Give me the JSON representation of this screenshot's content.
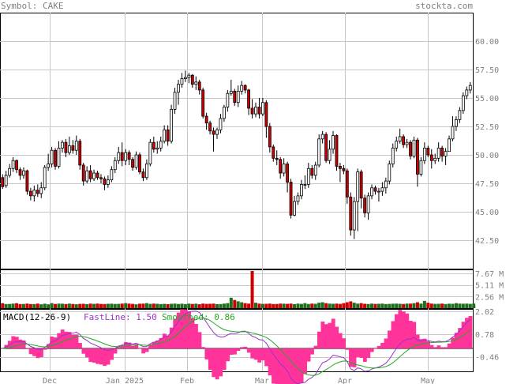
{
  "header": {
    "symbol_label": "Symbol: CAKE",
    "site": "stockta.com"
  },
  "colors": {
    "up_fill": "#ffffff",
    "down_fill": "#cc0000",
    "candle_outline": "#000000",
    "grid": "#c8c8c8",
    "vol_up": "#1e6e1e",
    "vol_down": "#cc0000",
    "macd_line": "#9933cc",
    "signal_line": "#22aa22",
    "histogram": "#ff3399",
    "tick_text": "#808080"
  },
  "chart_data": [
    {
      "name": "price",
      "type": "candlestick",
      "ylim": [
        40.0,
        62.5
      ],
      "yticks": [
        "60.00",
        "57.50",
        "55.00",
        "52.50",
        "50.00",
        "47.50",
        "45.00",
        "42.50"
      ],
      "xticks": [
        "Dec",
        "Jan 2025",
        "Feb",
        "Mar",
        "Apr",
        "May"
      ],
      "grid": true,
      "candles": [
        [
          48.0,
          47.2,
          48.3,
          47.0
        ],
        [
          47.3,
          48.2,
          48.6,
          47.1
        ],
        [
          48.2,
          48.8,
          49.2,
          48.0
        ],
        [
          48.8,
          49.5,
          49.8,
          48.5
        ],
        [
          49.5,
          48.7,
          49.6,
          48.4
        ],
        [
          48.7,
          48.2,
          48.9,
          47.8
        ],
        [
          48.2,
          48.6,
          48.9,
          47.9
        ],
        [
          48.6,
          46.8,
          48.7,
          46.5
        ],
        [
          46.8,
          46.4,
          47.1,
          46.0
        ],
        [
          46.4,
          46.9,
          47.3,
          45.9
        ],
        [
          46.9,
          46.6,
          47.4,
          46.3
        ],
        [
          46.6,
          47.1,
          47.6,
          46.2
        ],
        [
          47.1,
          48.9,
          49.1,
          46.9
        ],
        [
          48.9,
          49.2,
          50.1,
          48.6
        ],
        [
          49.2,
          50.4,
          50.7,
          48.9
        ],
        [
          50.4,
          49.0,
          50.6,
          48.7
        ],
        [
          49.0,
          50.6,
          51.2,
          48.8
        ],
        [
          50.6,
          51.1,
          51.3,
          50.2
        ],
        [
          51.1,
          50.2,
          51.4,
          49.8
        ],
        [
          50.2,
          50.8,
          51.6,
          50.0
        ],
        [
          50.8,
          50.4,
          51.3,
          50.1
        ],
        [
          50.4,
          51.2,
          51.7,
          50.0
        ],
        [
          51.2,
          49.1,
          51.4,
          48.7
        ],
        [
          49.1,
          47.7,
          49.3,
          47.3
        ],
        [
          47.7,
          48.6,
          49.0,
          47.5
        ],
        [
          48.6,
          47.9,
          49.1,
          47.6
        ],
        [
          47.9,
          48.4,
          48.7,
          47.7
        ],
        [
          48.4,
          48.0,
          48.6,
          47.8
        ],
        [
          48.0,
          47.9,
          48.3,
          47.5
        ],
        [
          47.9,
          47.4,
          48.1,
          46.9
        ],
        [
          47.4,
          47.8,
          48.2,
          47.1
        ],
        [
          47.8,
          48.7,
          49.0,
          47.6
        ],
        [
          48.7,
          49.5,
          49.8,
          48.4
        ],
        [
          49.5,
          50.2,
          50.7,
          49.2
        ],
        [
          50.2,
          49.5,
          51.1,
          49.0
        ],
        [
          49.5,
          50.2,
          50.5,
          49.1
        ],
        [
          50.2,
          49.6,
          50.4,
          49.1
        ],
        [
          49.6,
          48.9,
          49.8,
          48.6
        ],
        [
          48.9,
          50.0,
          50.3,
          48.7
        ],
        [
          50.0,
          48.5,
          50.2,
          48.3
        ],
        [
          48.5,
          48.0,
          48.8,
          47.7
        ],
        [
          48.0,
          49.2,
          49.6,
          47.8
        ],
        [
          49.2,
          51.1,
          51.4,
          49.0
        ],
        [
          51.1,
          50.5,
          51.6,
          50.2
        ],
        [
          50.5,
          50.6,
          51.2,
          50.1
        ],
        [
          50.6,
          51.2,
          51.6,
          50.3
        ],
        [
          51.2,
          52.2,
          52.6,
          51.0
        ],
        [
          52.2,
          51.2,
          52.6,
          50.8
        ],
        [
          51.2,
          54.0,
          54.4,
          51.0
        ],
        [
          54.0,
          55.5,
          55.9,
          53.6
        ],
        [
          55.5,
          56.2,
          56.6,
          54.4
        ],
        [
          56.2,
          56.7,
          57.2,
          55.9
        ],
        [
          56.7,
          56.8,
          57.4,
          56.4
        ],
        [
          56.8,
          57.0,
          57.2,
          56.3
        ],
        [
          57.0,
          56.2,
          57.1,
          55.9
        ],
        [
          56.2,
          56.4,
          56.9,
          55.7
        ],
        [
          56.4,
          55.7,
          56.6,
          55.3
        ],
        [
          55.7,
          53.4,
          55.9,
          53.2
        ],
        [
          53.4,
          52.8,
          53.7,
          52.2
        ],
        [
          52.8,
          52.1,
          53.0,
          51.8
        ],
        [
          52.1,
          51.8,
          52.4,
          50.3
        ],
        [
          51.8,
          52.2,
          52.4,
          51.4
        ],
        [
          52.2,
          53.2,
          53.6,
          51.9
        ],
        [
          53.2,
          54.2,
          54.4,
          52.9
        ],
        [
          54.2,
          55.4,
          55.7,
          53.8
        ],
        [
          55.4,
          55.6,
          56.6,
          55.2
        ],
        [
          55.6,
          54.6,
          55.8,
          54.3
        ],
        [
          54.6,
          55.6,
          56.1,
          54.2
        ],
        [
          55.6,
          56.1,
          56.5,
          55.3
        ],
        [
          56.1,
          55.7,
          56.2,
          55.4
        ],
        [
          55.7,
          54.1,
          55.8,
          53.5
        ],
        [
          54.1,
          53.6,
          54.9,
          53.2
        ],
        [
          53.6,
          54.2,
          54.6,
          53.3
        ],
        [
          54.2,
          53.6,
          55.0,
          53.2
        ],
        [
          53.6,
          54.6,
          55.0,
          53.4
        ],
        [
          54.6,
          52.5,
          54.8,
          51.5
        ],
        [
          52.5,
          50.7,
          52.8,
          50.2
        ],
        [
          50.7,
          49.7,
          50.9,
          49.4
        ],
        [
          49.7,
          49.6,
          50.4,
          49.1
        ],
        [
          49.6,
          48.4,
          49.8,
          47.9
        ],
        [
          48.4,
          49.2,
          49.7,
          48.1
        ],
        [
          49.2,
          47.6,
          49.4,
          46.7
        ],
        [
          47.6,
          44.7,
          47.9,
          44.4
        ],
        [
          44.7,
          45.9,
          46.4,
          44.6
        ],
        [
          45.9,
          46.4,
          46.7,
          45.6
        ],
        [
          46.4,
          47.4,
          47.8,
          46.1
        ],
        [
          47.4,
          47.4,
          48.2,
          47.0
        ],
        [
          47.4,
          48.8,
          49.3,
          47.1
        ],
        [
          48.8,
          48.2,
          49.1,
          47.9
        ],
        [
          48.2,
          49.1,
          49.4,
          47.8
        ],
        [
          49.1,
          51.4,
          51.8,
          48.9
        ],
        [
          51.4,
          51.8,
          52.1,
          51.0
        ],
        [
          51.8,
          49.5,
          52.0,
          49.3
        ],
        [
          49.5,
          50.5,
          51.3,
          49.2
        ],
        [
          50.5,
          51.7,
          52.1,
          50.1
        ],
        [
          51.7,
          49.0,
          51.8,
          48.6
        ],
        [
          49.0,
          48.8,
          49.3,
          47.6
        ],
        [
          48.8,
          48.6,
          49.1,
          48.3
        ],
        [
          48.6,
          46.3,
          48.8,
          45.7
        ],
        [
          46.3,
          43.4,
          46.7,
          42.9
        ],
        [
          43.4,
          45.9,
          46.3,
          42.6
        ],
        [
          45.9,
          48.5,
          48.8,
          43.3
        ],
        [
          48.5,
          46.2,
          48.7,
          45.3
        ],
        [
          46.2,
          44.9,
          46.5,
          44.5
        ],
        [
          44.9,
          46.4,
          46.7,
          44.3
        ],
        [
          46.4,
          47.1,
          47.4,
          46.1
        ],
        [
          47.1,
          46.8,
          47.3,
          46.5
        ],
        [
          46.8,
          46.8,
          47.1,
          45.9
        ],
        [
          46.8,
          47.1,
          47.6,
          46.4
        ],
        [
          47.1,
          47.7,
          48.0,
          46.6
        ],
        [
          47.7,
          49.2,
          49.5,
          47.4
        ],
        [
          49.2,
          50.6,
          51.0,
          48.9
        ],
        [
          50.6,
          51.2,
          51.6,
          50.3
        ],
        [
          51.2,
          51.6,
          52.3,
          51.0
        ],
        [
          51.6,
          50.9,
          51.8,
          50.6
        ],
        [
          50.9,
          51.1,
          51.4,
          50.6
        ],
        [
          51.1,
          49.9,
          51.3,
          49.6
        ],
        [
          49.9,
          51.3,
          51.6,
          49.7
        ],
        [
          51.3,
          48.3,
          51.5,
          47.2
        ],
        [
          48.3,
          49.5,
          49.8,
          48.1
        ],
        [
          49.5,
          50.6,
          51.1,
          49.2
        ],
        [
          50.6,
          50.0,
          50.8,
          49.8
        ],
        [
          50.0,
          49.5,
          50.5,
          48.8
        ],
        [
          49.5,
          49.7,
          50.1,
          49.2
        ],
        [
          49.7,
          50.6,
          51.1,
          49.4
        ],
        [
          50.6,
          49.9,
          50.8,
          49.4
        ],
        [
          49.9,
          50.3,
          50.6,
          49.1
        ],
        [
          50.3,
          51.4,
          51.7,
          50.9
        ],
        [
          51.4,
          52.5,
          53.4,
          51.2
        ],
        [
          52.5,
          53.1,
          53.4,
          52.1
        ],
        [
          53.1,
          53.9,
          54.2,
          52.8
        ],
        [
          53.9,
          55.2,
          55.5,
          53.6
        ],
        [
          55.2,
          55.7,
          56.0,
          54.9
        ],
        [
          55.7,
          56.1,
          56.4,
          55.4
        ]
      ],
      "last_close": 56.1
    },
    {
      "name": "volume",
      "type": "bar",
      "yticks": [
        "7.67 M",
        "5.11 M",
        "2.56 M"
      ],
      "ylim": [
        0,
        8.2
      ],
      "values": [
        1.1,
        0.9,
        0.92,
        1.0,
        1.1,
        0.9,
        0.92,
        1.0,
        0.9,
        0.9,
        1.0,
        0.84,
        0.98,
        0.84,
        1.1,
        0.92,
        1.0,
        0.98,
        0.9,
        1.0,
        0.92,
        0.86,
        0.94,
        0.96,
        0.88,
        1.0,
        0.94,
        1.0,
        0.92,
        0.9,
        0.96,
        0.98,
        0.92,
        0.94,
        1.0,
        1.1,
        1.0,
        0.94,
        0.84,
        0.98,
        1.0,
        1.1,
        0.94,
        1.0,
        0.96,
        0.9,
        0.94,
        0.88,
        0.96,
        1.0,
        0.92,
        0.98,
        0.9,
        1.0,
        0.92,
        0.98,
        0.86,
        1.0,
        0.94,
        0.96,
        1.0,
        0.88,
        0.9,
        1.0,
        1.1,
        2.3,
        1.8,
        1.5,
        1.3,
        1.1,
        1.0,
        8.2,
        1.2,
        1.0,
        0.94,
        0.96,
        1.0,
        0.9,
        0.92,
        1.0,
        0.98,
        0.94,
        1.0,
        0.88,
        1.0,
        0.94,
        1.1,
        0.92,
        1.0,
        0.96,
        1.2,
        1.3,
        1.1,
        1.0,
        0.96,
        1.0,
        0.94,
        1.1,
        1.3,
        1.5,
        1.2,
        1.0,
        1.1,
        0.96,
        0.92,
        1.0,
        0.94,
        0.96,
        1.0,
        0.9,
        0.94,
        0.98,
        1.0,
        0.96,
        0.92,
        1.0,
        1.0,
        1.1,
        1.3,
        1.0,
        1.6,
        1.2,
        1.0,
        0.94,
        0.96,
        1.0,
        0.9,
        0.98,
        0.96,
        1.1,
        1.0,
        0.98,
        1.0,
        0.94,
        1.0
      ]
    },
    {
      "name": "macd",
      "type": "line",
      "title": "MACD(12-26-9)",
      "fastline_label": "FastLine: 1.50",
      "smoothed_label": "Smoothed: 0.86",
      "yticks": [
        "2.02",
        "0.78",
        "-0.46"
      ],
      "ylim": [
        -1.25,
        2.15
      ],
      "zero_line": 0.0
    }
  ]
}
